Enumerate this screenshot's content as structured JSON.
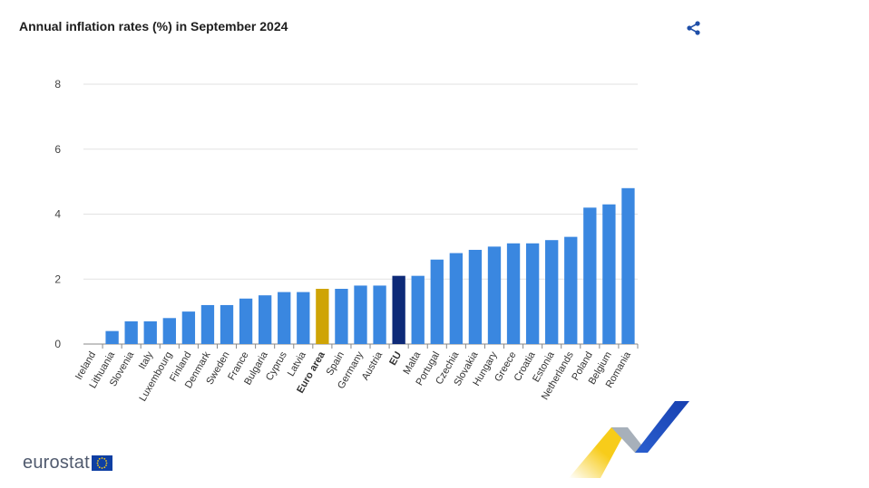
{
  "title": "Annual inflation rates (%) in September 2024",
  "icons": {
    "share": "share-icon",
    "flag": "eu-flag-icon"
  },
  "footer": {
    "logo_text": "eurostat"
  },
  "colors": {
    "default_bar": "#3a87e0",
    "euro_area_bar": "#cfa405",
    "eu_bar": "#0e2a78",
    "share_icon": "#1f4fa8",
    "grid": "#e2e2e2",
    "deco_yellow": "#f7cc1a",
    "deco_blue": "#1f4fb8",
    "deco_grey": "#9ea8b3"
  },
  "chart_data": {
    "type": "bar",
    "title": "Annual inflation rates (%) in September 2024",
    "xlabel": "",
    "ylabel": "",
    "ylim": [
      0,
      8
    ],
    "yticks": [
      0,
      2,
      4,
      6,
      8
    ],
    "grid": true,
    "categories": [
      "Ireland",
      "Lithuania",
      "Slovenia",
      "Italy",
      "Luxembourg",
      "Finland",
      "Denmark",
      "Sweden",
      "France",
      "Bulgaria",
      "Cyprus",
      "Latvia",
      "Euro area",
      "Spain",
      "Germany",
      "Austria",
      "EU",
      "Malta",
      "Portugal",
      "Czechia",
      "Slovakia",
      "Hungary",
      "Greece",
      "Croatia",
      "Estonia",
      "Netherlands",
      "Poland",
      "Belgium",
      "Romania"
    ],
    "values": [
      0.0,
      0.4,
      0.7,
      0.7,
      0.8,
      1.0,
      1.2,
      1.2,
      1.4,
      1.5,
      1.6,
      1.6,
      1.7,
      1.7,
      1.8,
      1.8,
      2.1,
      2.1,
      2.6,
      2.8,
      2.9,
      3.0,
      3.1,
      3.1,
      3.2,
      3.3,
      4.2,
      4.3,
      4.8
    ],
    "highlight": {
      "Euro area": "euro_area_bar",
      "EU": "eu_bar"
    }
  }
}
